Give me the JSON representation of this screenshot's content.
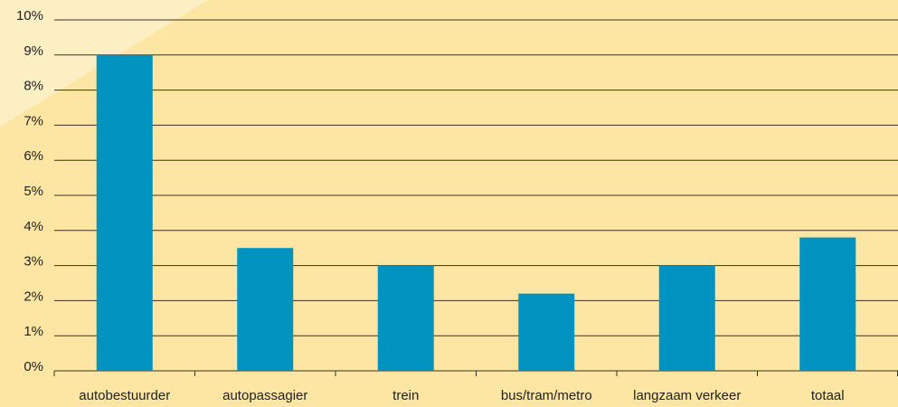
{
  "chart_data": {
    "type": "bar",
    "categories": [
      "autobestuurder",
      "autopassagier",
      "trein",
      "bus/tram/metro",
      "langzaam verkeer",
      "totaal"
    ],
    "values": [
      9.0,
      3.5,
      3.0,
      2.2,
      3.0,
      3.8
    ],
    "color": "#0093c0",
    "ylim": [
      0,
      10
    ],
    "yticks": [
      {
        "value": 0,
        "label": "0%"
      },
      {
        "value": 1,
        "label": "1%"
      },
      {
        "value": 2,
        "label": "2%"
      },
      {
        "value": 3,
        "label": "3%"
      },
      {
        "value": 4,
        "label": "4%"
      },
      {
        "value": 5,
        "label": "5%"
      },
      {
        "value": 6,
        "label": "6%"
      },
      {
        "value": 7,
        "label": "7%"
      },
      {
        "value": 8,
        "label": "8%"
      },
      {
        "value": 9,
        "label": "9%"
      },
      {
        "value": 10,
        "label": "10%"
      }
    ],
    "grid": true
  }
}
